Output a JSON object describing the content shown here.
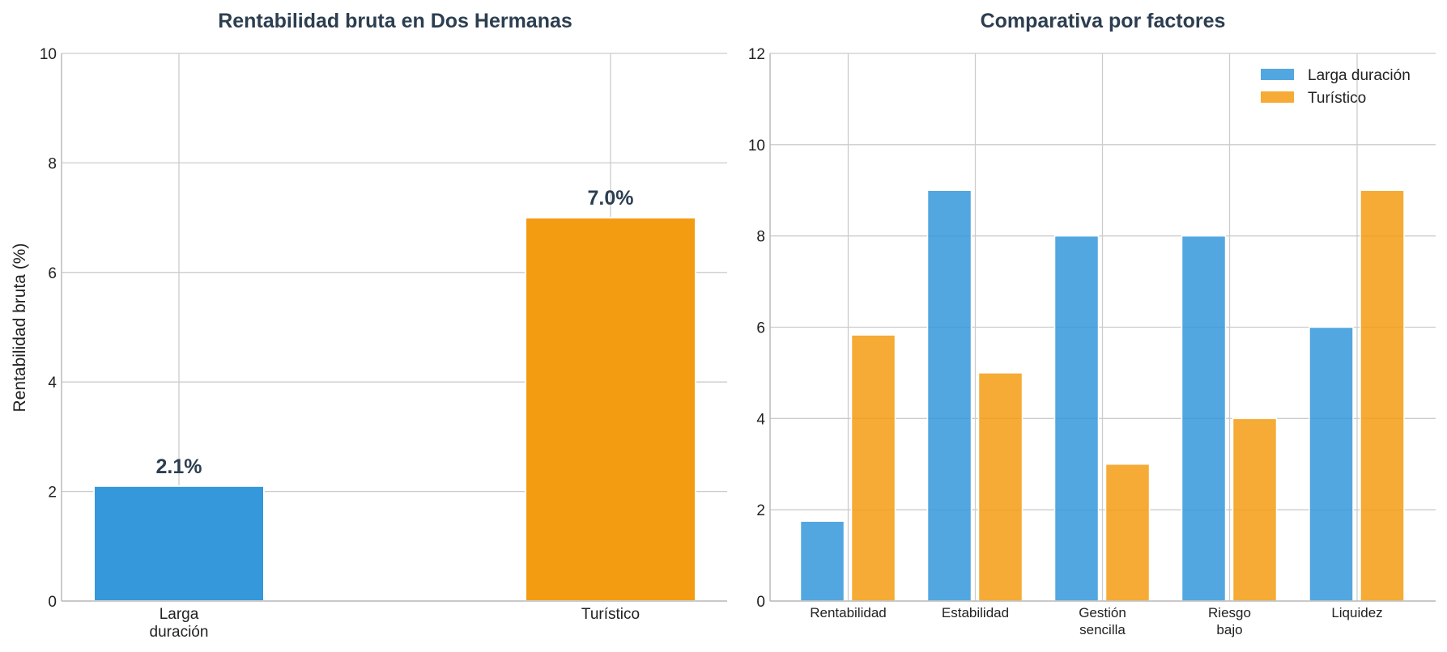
{
  "colors": {
    "larga": "#3498db",
    "turistico": "#f39c12"
  },
  "chart_data": [
    {
      "type": "bar",
      "title": "Rentabilidad bruta en Dos Hermanas",
      "ylabel": "Rentabilidad bruta (%)",
      "categories": [
        [
          "Larga",
          "duración"
        ],
        [
          "Turístico"
        ]
      ],
      "values": [
        2.1,
        7.0
      ],
      "value_labels": [
        "2.1%",
        "7.0%"
      ],
      "colors": [
        "#3498db",
        "#f39c12"
      ],
      "ylim": [
        0,
        10
      ],
      "yticks": [
        0,
        2,
        4,
        6,
        8,
        10
      ],
      "grid": true
    },
    {
      "type": "bar",
      "title": "Comparativa por factores",
      "categories": [
        [
          "Rentabilidad"
        ],
        [
          "Estabilidad"
        ],
        [
          "Gestión",
          "sencilla"
        ],
        [
          "Riesgo",
          "bajo"
        ],
        [
          "Liquidez"
        ]
      ],
      "series": [
        {
          "name": "Larga duración",
          "values": [
            1.75,
            9,
            8,
            8,
            6
          ],
          "color": "#3498db"
        },
        {
          "name": "Turístico",
          "values": [
            5.83,
            5,
            3,
            4,
            9
          ],
          "color": "#f39c12"
        }
      ],
      "ylim": [
        0,
        12
      ],
      "yticks": [
        0,
        2,
        4,
        6,
        8,
        10,
        12
      ],
      "legend": "top-right",
      "grid": true
    }
  ]
}
